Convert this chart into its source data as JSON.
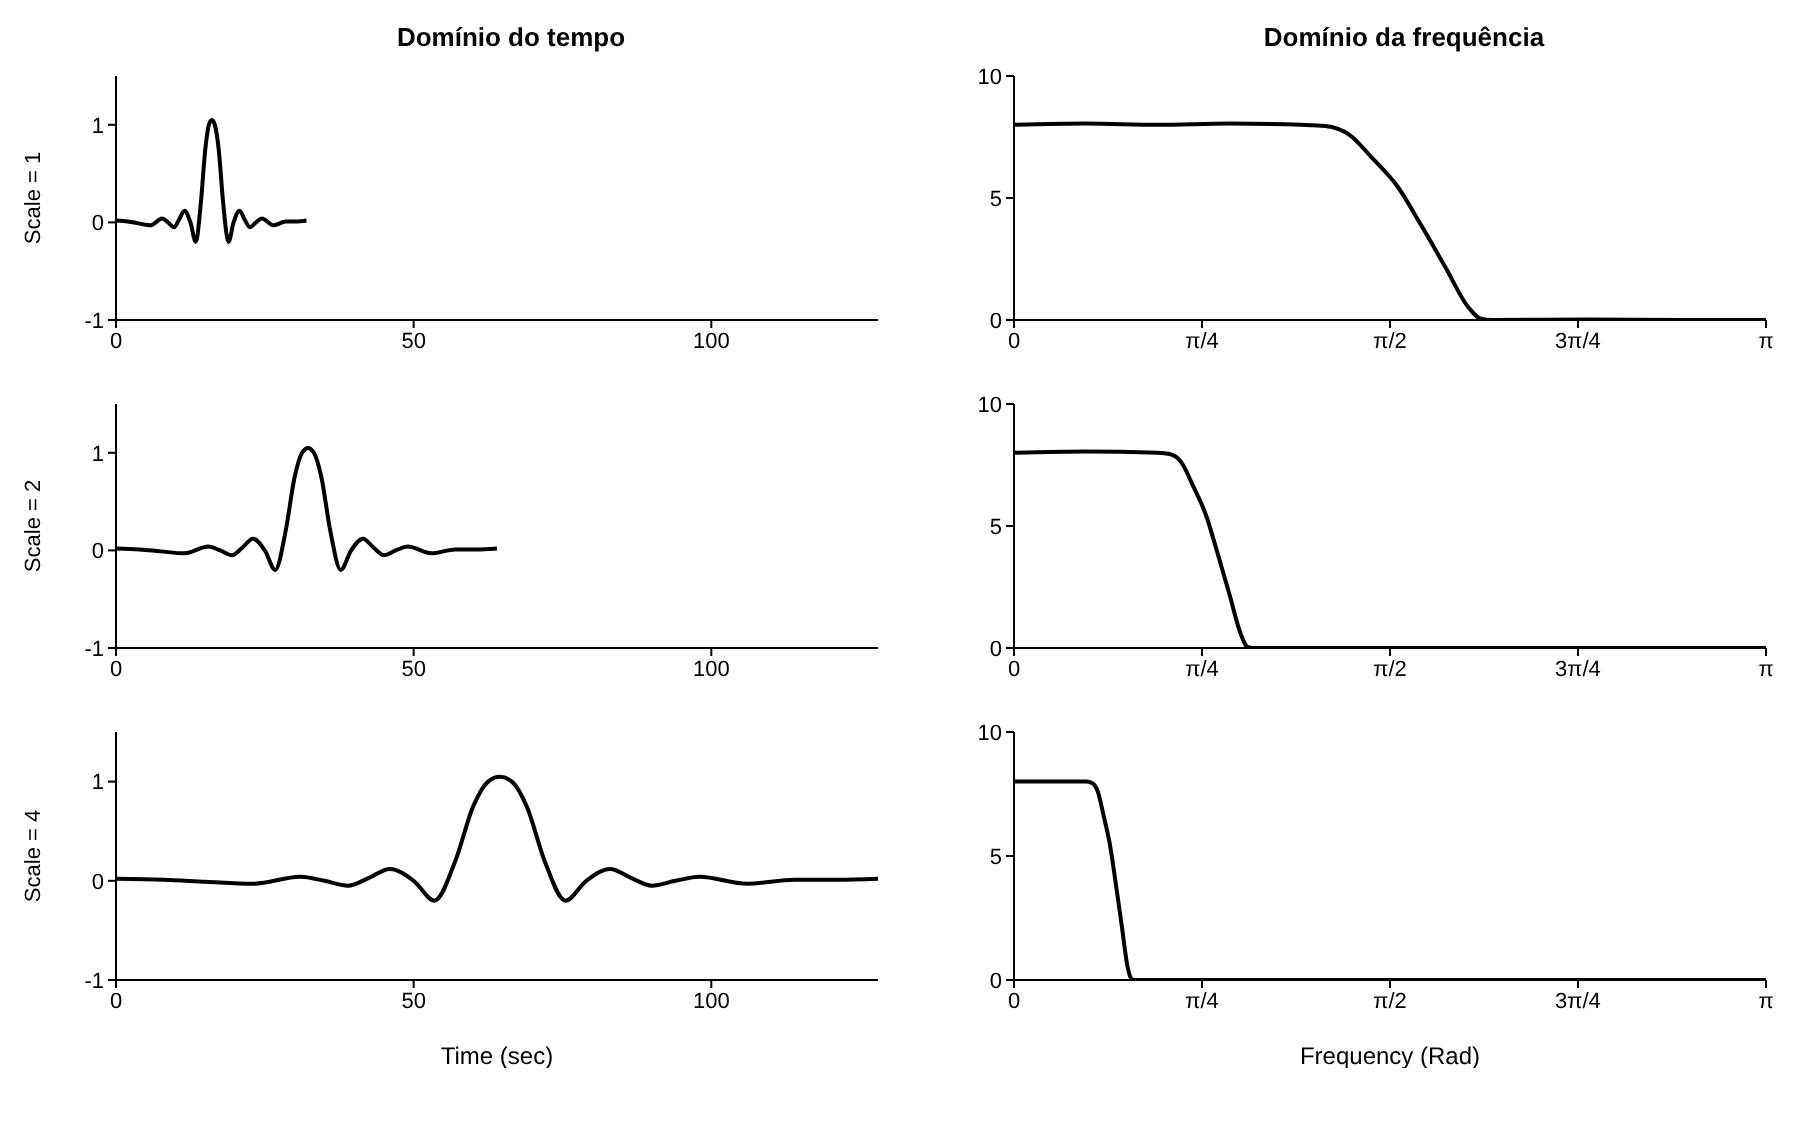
{
  "chart_data": [
    {
      "type": "line",
      "title": "Domínio do tempo",
      "ylabel": "Scale = 1",
      "color": "#000000",
      "xlim": [
        0,
        128
      ],
      "ylim": [
        -1,
        1.5
      ],
      "xticks": [
        0,
        50,
        100
      ],
      "yticks": [
        -1,
        0,
        1
      ],
      "x": [
        0,
        2,
        3.75,
        5.75,
        7.75,
        8.75,
        9.75,
        10.6,
        11.5,
        12.5,
        13.4,
        14.25,
        15,
        15.6,
        16.1,
        16.6,
        17.25,
        18,
        18.9,
        19.75,
        20.75,
        21.6,
        22.5,
        23.5,
        24.5,
        26.5,
        28.5,
        30.25,
        32
      ],
      "values": [
        0.02,
        0.01,
        -0.01,
        -0.03,
        0.04,
        0,
        -0.05,
        0.03,
        0.12,
        0,
        -0.2,
        0.2,
        0.75,
        1.0,
        1.05,
        1.0,
        0.75,
        0.2,
        -0.2,
        0,
        0.12,
        0.03,
        -0.05,
        0,
        0.04,
        -0.03,
        0.01,
        0.01,
        0.02
      ]
    },
    {
      "type": "line",
      "title": "Domínio da frequência",
      "color": "#000000",
      "xlim": [
        0,
        3.1416
      ],
      "ylim": [
        0,
        10
      ],
      "xticks": [
        0,
        {
          "value": 0.7854,
          "label": "π/4"
        },
        {
          "value": 1.5708,
          "label": "π/2"
        },
        {
          "value": 2.3562,
          "label": "3π/4"
        },
        {
          "value": 3.1416,
          "label": "π"
        }
      ],
      "yticks": [
        0,
        5,
        10
      ],
      "x": [
        0,
        0.3,
        0.6,
        0.9,
        1.2,
        1.3,
        1.4,
        1.5,
        1.6,
        1.7,
        1.8,
        1.9,
        1.95,
        2.0,
        2.4,
        2.8,
        3.1416
      ],
      "values": [
        8,
        8.05,
        8,
        8.05,
        8,
        7.95,
        7.6,
        6.6,
        5.5,
        3.9,
        2.2,
        0.5,
        0.05,
        0,
        0.02,
        0,
        0
      ]
    },
    {
      "type": "line",
      "ylabel": "Scale = 2",
      "color": "#000000",
      "xlim": [
        0,
        128
      ],
      "ylim": [
        -1,
        1.5
      ],
      "xticks": [
        0,
        50,
        100
      ],
      "yticks": [
        -1,
        0,
        1
      ],
      "x": [
        0,
        4,
        7.5,
        11.5,
        15.5,
        17.5,
        19.5,
        21.25,
        23,
        25,
        26.75,
        28.5,
        30,
        31.25,
        32.25,
        33.25,
        34.5,
        36,
        37.75,
        39.5,
        41.5,
        43.25,
        45,
        47,
        49,
        53,
        57,
        60.5,
        64
      ],
      "values": [
        0.02,
        0.01,
        -0.01,
        -0.03,
        0.04,
        0,
        -0.05,
        0.03,
        0.12,
        0,
        -0.2,
        0.2,
        0.75,
        1.0,
        1.05,
        1.0,
        0.75,
        0.2,
        -0.2,
        0,
        0.12,
        0.03,
        -0.05,
        0,
        0.04,
        -0.03,
        0.01,
        0.01,
        0.02
      ]
    },
    {
      "type": "line",
      "color": "#000000",
      "xlim": [
        0,
        3.1416
      ],
      "ylim": [
        0,
        10
      ],
      "xticks": [
        0,
        {
          "value": 0.7854,
          "label": "π/4"
        },
        {
          "value": 1.5708,
          "label": "π/2"
        },
        {
          "value": 2.3562,
          "label": "3π/4"
        },
        {
          "value": 3.1416,
          "label": "π"
        }
      ],
      "yticks": [
        0,
        5,
        10
      ],
      "x": [
        0,
        0.3,
        0.6,
        0.65,
        0.7,
        0.75,
        0.8,
        0.85,
        0.9,
        0.95,
        0.975,
        1.0,
        2.0,
        3.1416
      ],
      "values": [
        8,
        8.05,
        8,
        7.95,
        7.6,
        6.6,
        5.5,
        3.9,
        2.2,
        0.5,
        0.05,
        0,
        0,
        0
      ]
    },
    {
      "type": "line",
      "xlabel": "Time (sec)",
      "ylabel": "Scale = 4",
      "color": "#000000",
      "xlim": [
        0,
        128
      ],
      "ylim": [
        -1,
        1.5
      ],
      "xticks": [
        0,
        50,
        100
      ],
      "yticks": [
        -1,
        0,
        1
      ],
      "x": [
        0,
        8,
        15,
        23,
        31,
        35,
        39,
        42.5,
        46,
        50,
        53.5,
        57,
        60,
        62.5,
        64.5,
        66.5,
        69,
        72,
        75.5,
        79,
        83,
        86.5,
        90,
        94,
        98,
        106,
        114,
        121,
        128
      ],
      "values": [
        0.02,
        0.01,
        -0.01,
        -0.03,
        0.04,
        0,
        -0.05,
        0.03,
        0.12,
        0,
        -0.2,
        0.2,
        0.75,
        1.0,
        1.05,
        1.0,
        0.75,
        0.2,
        -0.2,
        0,
        0.12,
        0.03,
        -0.05,
        0,
        0.04,
        -0.03,
        0.01,
        0.01,
        0.02
      ]
    },
    {
      "type": "line",
      "xlabel": "Frequency (Rad)",
      "color": "#000000",
      "xlim": [
        0,
        3.1416
      ],
      "ylim": [
        0,
        10
      ],
      "xticks": [
        0,
        {
          "value": 0.7854,
          "label": "π/4"
        },
        {
          "value": 1.5708,
          "label": "π/2"
        },
        {
          "value": 2.3562,
          "label": "3π/4"
        },
        {
          "value": 3.1416,
          "label": "π"
        }
      ],
      "yticks": [
        0,
        5,
        10
      ],
      "x": [
        0,
        0.3,
        0.325,
        0.35,
        0.375,
        0.4,
        0.425,
        0.45,
        0.475,
        0.49,
        0.5,
        1.5,
        3.1416
      ],
      "values": [
        8,
        8,
        7.95,
        7.6,
        6.6,
        5.5,
        3.9,
        2.2,
        0.5,
        0.05,
        0,
        0,
        0
      ]
    }
  ]
}
